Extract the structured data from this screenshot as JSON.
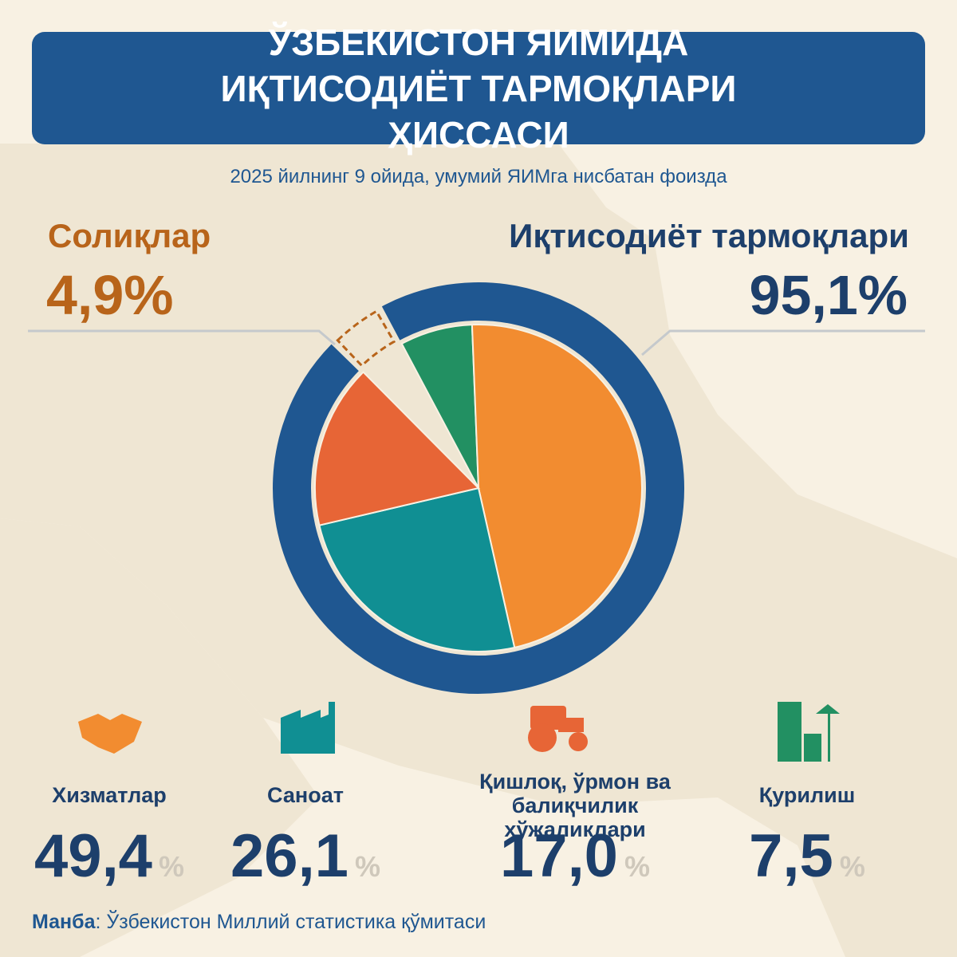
{
  "chart_data": {
    "type": "pie",
    "title": "ЎЗБЕКИСТОН ЯИМИДА ИҚТИСОДИЁТ ТАРМОҚЛАРИ ҲИССАСИ",
    "subtitle": "2025 йилнинг 9 ойида, умумий ЯИМга нисбатан фоизда",
    "ring": {
      "categories": [
        "Иқтисодиёт тармоқлари",
        "Солиқлар"
      ],
      "values": [
        95.1,
        4.9
      ],
      "value_labels": [
        "95,1%",
        "4,9%"
      ],
      "colors": [
        "#1f5791",
        "#b8641a"
      ]
    },
    "categories": [
      "Хизматлар",
      "Саноат",
      "Қишлоқ, ўрмон ва балиқчилик хўжаликлари",
      "Қурилиш"
    ],
    "values": [
      49.4,
      26.1,
      17.0,
      7.5
    ],
    "value_labels": [
      "49,4",
      "26,1",
      "17,0",
      "7,5"
    ],
    "unit": "%",
    "colors": [
      "#f28c30",
      "#108f93",
      "#e76536",
      "#229062"
    ],
    "source_label": "Манба",
    "source": "Ўзбекистон Миллий статистика қўмитаси"
  }
}
